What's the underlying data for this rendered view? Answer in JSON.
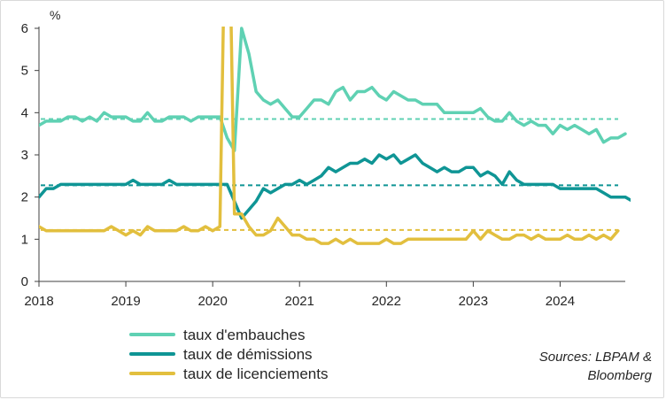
{
  "chart_data": {
    "type": "line",
    "unit_label": "%",
    "source": "Sources: LBPAM & Bloomberg",
    "x_start_year": 2018,
    "x_tick_labels": [
      "2018",
      "2019",
      "2020",
      "2021",
      "2022",
      "2023",
      "2024"
    ],
    "ylim": [
      0,
      6
    ],
    "y_ticks": [
      0,
      1,
      2,
      3,
      4,
      5,
      6
    ],
    "colors": {
      "embauches": "#5fd1b3",
      "demissions": "#0f9595",
      "licenciements": "#e2bf3e",
      "axis": "#404040"
    },
    "series": [
      {
        "key": "embauches",
        "name": "taux d'embauches",
        "color": "#5fd1b3",
        "average": 3.85,
        "values": [
          3.7,
          3.8,
          3.8,
          3.8,
          3.9,
          3.9,
          3.8,
          3.9,
          3.8,
          4.0,
          3.9,
          3.9,
          3.9,
          3.8,
          3.8,
          4.0,
          3.8,
          3.8,
          3.9,
          3.9,
          3.9,
          3.8,
          3.9,
          3.9,
          3.9,
          3.9,
          3.4,
          3.1,
          6.0,
          5.4,
          4.5,
          4.3,
          4.2,
          4.3,
          4.1,
          3.9,
          3.9,
          4.1,
          4.3,
          4.3,
          4.2,
          4.5,
          4.6,
          4.3,
          4.5,
          4.5,
          4.6,
          4.4,
          4.3,
          4.5,
          4.4,
          4.3,
          4.3,
          4.2,
          4.2,
          4.2,
          4.0,
          4.0,
          4.0,
          4.0,
          4.0,
          4.1,
          3.9,
          3.8,
          3.8,
          4.0,
          3.8,
          3.7,
          3.8,
          3.7,
          3.7,
          3.5,
          3.7,
          3.6,
          3.7,
          3.6,
          3.5,
          3.6,
          3.3,
          3.4,
          3.4,
          3.5
        ]
      },
      {
        "key": "demissions",
        "name": "taux de démissions",
        "color": "#0f9595",
        "average": 2.28,
        "values": [
          2.0,
          2.2,
          2.2,
          2.3,
          2.3,
          2.3,
          2.3,
          2.3,
          2.3,
          2.3,
          2.3,
          2.3,
          2.3,
          2.4,
          2.3,
          2.3,
          2.3,
          2.3,
          2.4,
          2.3,
          2.3,
          2.3,
          2.3,
          2.3,
          2.3,
          2.3,
          2.3,
          1.9,
          1.5,
          1.7,
          1.9,
          2.2,
          2.1,
          2.2,
          2.3,
          2.3,
          2.4,
          2.3,
          2.4,
          2.5,
          2.7,
          2.6,
          2.7,
          2.8,
          2.8,
          2.9,
          2.8,
          3.0,
          2.9,
          3.0,
          2.8,
          2.9,
          3.0,
          2.8,
          2.7,
          2.6,
          2.7,
          2.6,
          2.6,
          2.7,
          2.7,
          2.5,
          2.6,
          2.5,
          2.3,
          2.6,
          2.4,
          2.3,
          2.3,
          2.3,
          2.3,
          2.3,
          2.2,
          2.2,
          2.2,
          2.2,
          2.2,
          2.2,
          2.1,
          2.0,
          2.0,
          2.0,
          1.9
        ]
      },
      {
        "key": "licenciements",
        "name": "taux de licenciements",
        "color": "#e2bf3e",
        "average": 1.22,
        "values": [
          1.3,
          1.2,
          1.2,
          1.2,
          1.2,
          1.2,
          1.2,
          1.2,
          1.2,
          1.2,
          1.3,
          1.2,
          1.1,
          1.2,
          1.1,
          1.3,
          1.2,
          1.2,
          1.2,
          1.2,
          1.3,
          1.2,
          1.2,
          1.3,
          1.2,
          1.3,
          11.5,
          1.6,
          1.6,
          1.3,
          1.1,
          1.1,
          1.2,
          1.5,
          1.3,
          1.1,
          1.1,
          1.0,
          1.0,
          0.9,
          0.9,
          1.0,
          0.9,
          1.0,
          0.9,
          0.9,
          0.9,
          0.9,
          1.0,
          0.9,
          0.9,
          1.0,
          1.0,
          1.0,
          1.0,
          1.0,
          1.0,
          1.0,
          1.0,
          1.0,
          1.2,
          1.0,
          1.2,
          1.1,
          1.0,
          1.0,
          1.1,
          1.1,
          1.0,
          1.1,
          1.0,
          1.0,
          1.0,
          1.1,
          1.0,
          1.0,
          1.1,
          1.0,
          1.1,
          1.0,
          1.2
        ]
      }
    ]
  }
}
